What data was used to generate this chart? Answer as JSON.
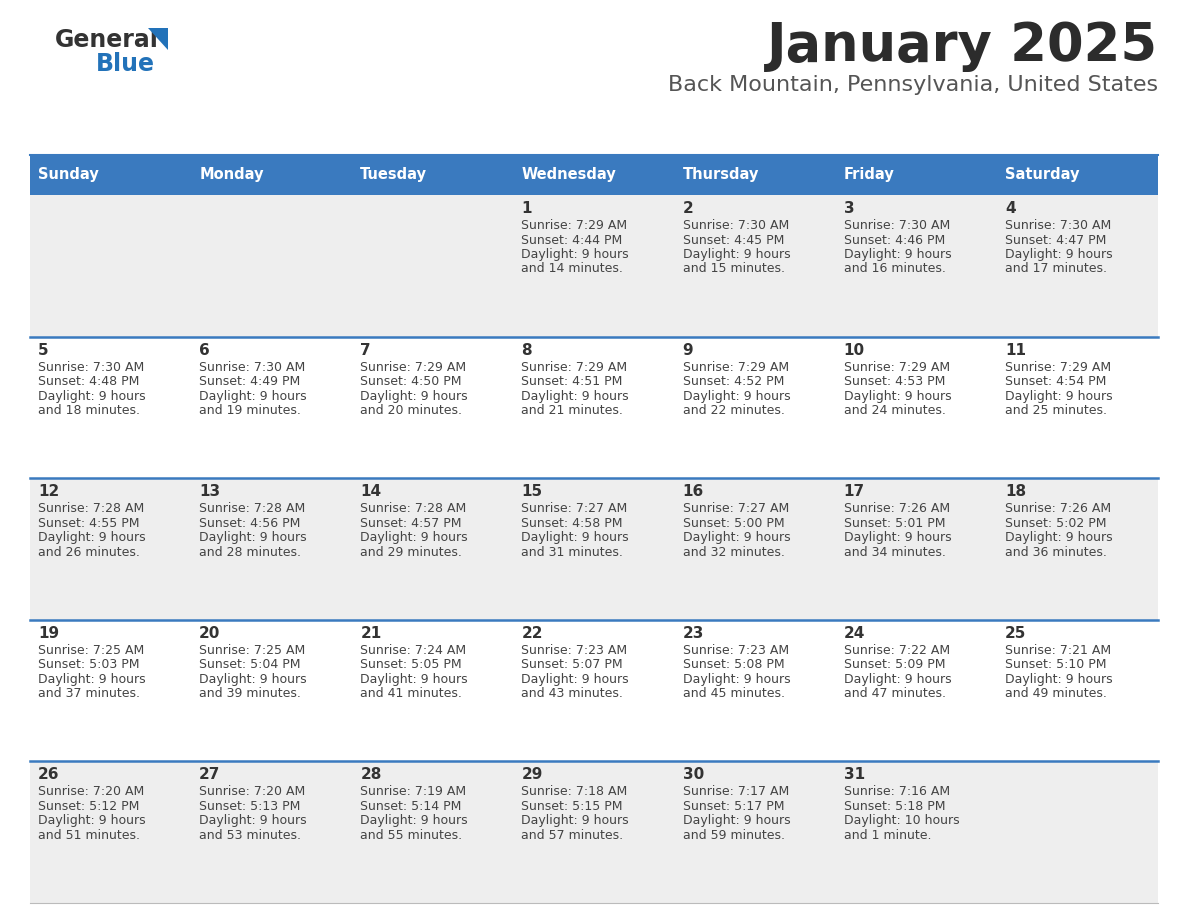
{
  "title": "January 2025",
  "subtitle": "Back Mountain, Pennsylvania, United States",
  "days_of_week": [
    "Sunday",
    "Monday",
    "Tuesday",
    "Wednesday",
    "Thursday",
    "Friday",
    "Saturday"
  ],
  "header_bg": "#3a7abf",
  "header_text": "#ffffff",
  "row_bg_odd": "#ffffff",
  "row_bg_even": "#eeeeee",
  "row_separator": "#3a7abf",
  "day_num_color": "#333333",
  "cell_text_color": "#444444",
  "calendar_data": [
    [
      {
        "day": null,
        "sunrise": null,
        "sunset": null,
        "daylight": null
      },
      {
        "day": null,
        "sunrise": null,
        "sunset": null,
        "daylight": null
      },
      {
        "day": null,
        "sunrise": null,
        "sunset": null,
        "daylight": null
      },
      {
        "day": 1,
        "sunrise": "7:29 AM",
        "sunset": "4:44 PM",
        "daylight": "9 hours\nand 14 minutes."
      },
      {
        "day": 2,
        "sunrise": "7:30 AM",
        "sunset": "4:45 PM",
        "daylight": "9 hours\nand 15 minutes."
      },
      {
        "day": 3,
        "sunrise": "7:30 AM",
        "sunset": "4:46 PM",
        "daylight": "9 hours\nand 16 minutes."
      },
      {
        "day": 4,
        "sunrise": "7:30 AM",
        "sunset": "4:47 PM",
        "daylight": "9 hours\nand 17 minutes."
      }
    ],
    [
      {
        "day": 5,
        "sunrise": "7:30 AM",
        "sunset": "4:48 PM",
        "daylight": "9 hours\nand 18 minutes."
      },
      {
        "day": 6,
        "sunrise": "7:30 AM",
        "sunset": "4:49 PM",
        "daylight": "9 hours\nand 19 minutes."
      },
      {
        "day": 7,
        "sunrise": "7:29 AM",
        "sunset": "4:50 PM",
        "daylight": "9 hours\nand 20 minutes."
      },
      {
        "day": 8,
        "sunrise": "7:29 AM",
        "sunset": "4:51 PM",
        "daylight": "9 hours\nand 21 minutes."
      },
      {
        "day": 9,
        "sunrise": "7:29 AM",
        "sunset": "4:52 PM",
        "daylight": "9 hours\nand 22 minutes."
      },
      {
        "day": 10,
        "sunrise": "7:29 AM",
        "sunset": "4:53 PM",
        "daylight": "9 hours\nand 24 minutes."
      },
      {
        "day": 11,
        "sunrise": "7:29 AM",
        "sunset": "4:54 PM",
        "daylight": "9 hours\nand 25 minutes."
      }
    ],
    [
      {
        "day": 12,
        "sunrise": "7:28 AM",
        "sunset": "4:55 PM",
        "daylight": "9 hours\nand 26 minutes."
      },
      {
        "day": 13,
        "sunrise": "7:28 AM",
        "sunset": "4:56 PM",
        "daylight": "9 hours\nand 28 minutes."
      },
      {
        "day": 14,
        "sunrise": "7:28 AM",
        "sunset": "4:57 PM",
        "daylight": "9 hours\nand 29 minutes."
      },
      {
        "day": 15,
        "sunrise": "7:27 AM",
        "sunset": "4:58 PM",
        "daylight": "9 hours\nand 31 minutes."
      },
      {
        "day": 16,
        "sunrise": "7:27 AM",
        "sunset": "5:00 PM",
        "daylight": "9 hours\nand 32 minutes."
      },
      {
        "day": 17,
        "sunrise": "7:26 AM",
        "sunset": "5:01 PM",
        "daylight": "9 hours\nand 34 minutes."
      },
      {
        "day": 18,
        "sunrise": "7:26 AM",
        "sunset": "5:02 PM",
        "daylight": "9 hours\nand 36 minutes."
      }
    ],
    [
      {
        "day": 19,
        "sunrise": "7:25 AM",
        "sunset": "5:03 PM",
        "daylight": "9 hours\nand 37 minutes."
      },
      {
        "day": 20,
        "sunrise": "7:25 AM",
        "sunset": "5:04 PM",
        "daylight": "9 hours\nand 39 minutes."
      },
      {
        "day": 21,
        "sunrise": "7:24 AM",
        "sunset": "5:05 PM",
        "daylight": "9 hours\nand 41 minutes."
      },
      {
        "day": 22,
        "sunrise": "7:23 AM",
        "sunset": "5:07 PM",
        "daylight": "9 hours\nand 43 minutes."
      },
      {
        "day": 23,
        "sunrise": "7:23 AM",
        "sunset": "5:08 PM",
        "daylight": "9 hours\nand 45 minutes."
      },
      {
        "day": 24,
        "sunrise": "7:22 AM",
        "sunset": "5:09 PM",
        "daylight": "9 hours\nand 47 minutes."
      },
      {
        "day": 25,
        "sunrise": "7:21 AM",
        "sunset": "5:10 PM",
        "daylight": "9 hours\nand 49 minutes."
      }
    ],
    [
      {
        "day": 26,
        "sunrise": "7:20 AM",
        "sunset": "5:12 PM",
        "daylight": "9 hours\nand 51 minutes."
      },
      {
        "day": 27,
        "sunrise": "7:20 AM",
        "sunset": "5:13 PM",
        "daylight": "9 hours\nand 53 minutes."
      },
      {
        "day": 28,
        "sunrise": "7:19 AM",
        "sunset": "5:14 PM",
        "daylight": "9 hours\nand 55 minutes."
      },
      {
        "day": 29,
        "sunrise": "7:18 AM",
        "sunset": "5:15 PM",
        "daylight": "9 hours\nand 57 minutes."
      },
      {
        "day": 30,
        "sunrise": "7:17 AM",
        "sunset": "5:17 PM",
        "daylight": "9 hours\nand 59 minutes."
      },
      {
        "day": 31,
        "sunrise": "7:16 AM",
        "sunset": "5:18 PM",
        "daylight": "10 hours\nand 1 minute."
      },
      {
        "day": null,
        "sunrise": null,
        "sunset": null,
        "daylight": null
      }
    ]
  ]
}
